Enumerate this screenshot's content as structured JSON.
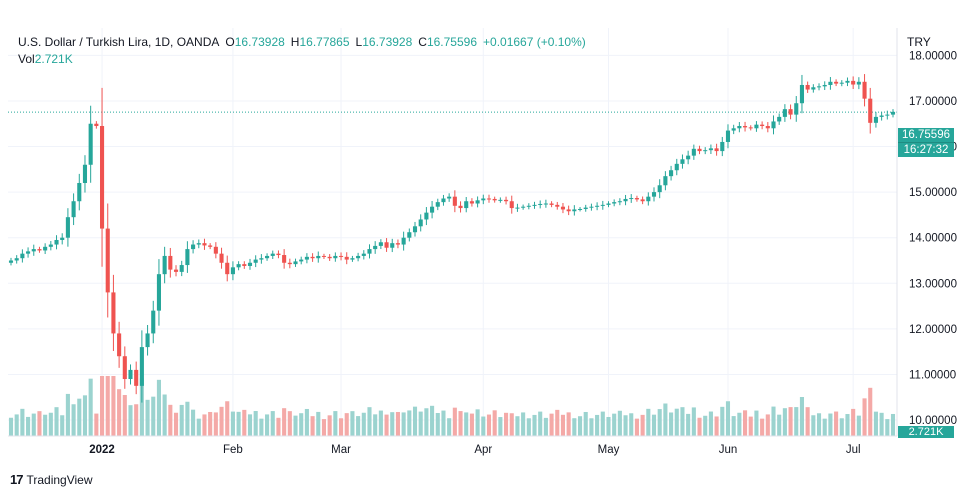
{
  "header": {
    "symbol": "U.S. Dollar / Turkish Lira, 1D, OANDA",
    "open_label": "O",
    "open": "16.73928",
    "high_label": "H",
    "high": "16.77865",
    "low_label": "L",
    "low": "16.73928",
    "close_label": "C",
    "close": "16.75596",
    "change": "+0.01667 (+0.10%)",
    "vol_label": "Vol",
    "vol": "2.721K",
    "currency": "TRY"
  },
  "price_tag": {
    "price": "16.75596",
    "countdown": "16:27:32"
  },
  "volume_tag": "2.721K",
  "brand": {
    "logo": "17",
    "name": "TradingView"
  },
  "colors": {
    "up": "#26a69a",
    "down": "#ef5350",
    "up_volume": "#9bd3cf",
    "down_volume": "#f4a9a7"
  },
  "chart_data": {
    "type": "candlestick",
    "grid": true,
    "ylim": [
      9.65,
      18.6
    ],
    "y_ticks": [
      "18.00000",
      "17.00000",
      "16.00000",
      "15.00000",
      "14.00000",
      "13.00000",
      "12.00000",
      "11.00000",
      "10.00000"
    ],
    "x_ticks": [
      "2022",
      "Feb",
      "Mar",
      "Apr",
      "May",
      "Jun",
      "Jul"
    ],
    "last_price": 16.75596,
    "close": [
      13.5,
      13.55,
      13.65,
      13.7,
      13.75,
      13.72,
      13.8,
      13.85,
      13.95,
      14.0,
      14.45,
      14.8,
      15.2,
      15.6,
      16.5,
      16.45,
      14.2,
      12.8,
      11.9,
      11.4,
      10.9,
      11.1,
      10.75,
      11.6,
      11.9,
      12.4,
      13.2,
      13.6,
      13.3,
      13.25,
      13.4,
      13.75,
      13.85,
      13.88,
      13.83,
      13.8,
      13.65,
      13.45,
      13.2,
      13.35,
      13.42,
      13.38,
      13.45,
      13.52,
      13.55,
      13.6,
      13.65,
      13.62,
      13.45,
      13.42,
      13.48,
      13.52,
      13.58,
      13.55,
      13.6,
      13.58,
      13.55,
      13.6,
      13.58,
      13.52,
      13.55,
      13.6,
      13.65,
      13.75,
      13.82,
      13.9,
      13.78,
      13.88,
      13.85,
      14.0,
      14.12,
      14.25,
      14.4,
      14.55,
      14.68,
      14.78,
      14.86,
      14.9,
      14.7,
      14.65,
      14.8,
      14.75,
      14.82,
      14.86,
      14.85,
      14.82,
      14.83,
      14.8,
      14.65,
      14.66,
      14.68,
      14.7,
      14.72,
      14.74,
      14.75,
      14.72,
      14.68,
      14.62,
      14.58,
      14.62,
      14.63,
      14.66,
      14.68,
      14.7,
      14.72,
      14.75,
      14.78,
      14.8,
      14.85,
      14.87,
      14.84,
      14.8,
      14.9,
      15.0,
      15.15,
      15.35,
      15.48,
      15.62,
      15.72,
      15.8,
      15.95,
      15.9,
      15.92,
      15.96,
      15.9,
      16.1,
      16.35,
      16.4,
      16.45,
      16.42,
      16.4,
      16.48,
      16.45,
      16.4,
      16.55,
      16.65,
      16.82,
      16.7,
      16.95,
      17.35,
      17.25,
      17.3,
      17.32,
      17.35,
      17.42,
      17.38,
      17.4,
      17.44,
      17.36,
      17.42,
      17.05,
      16.52,
      16.65,
      16.68,
      16.7,
      16.76
    ]
  }
}
